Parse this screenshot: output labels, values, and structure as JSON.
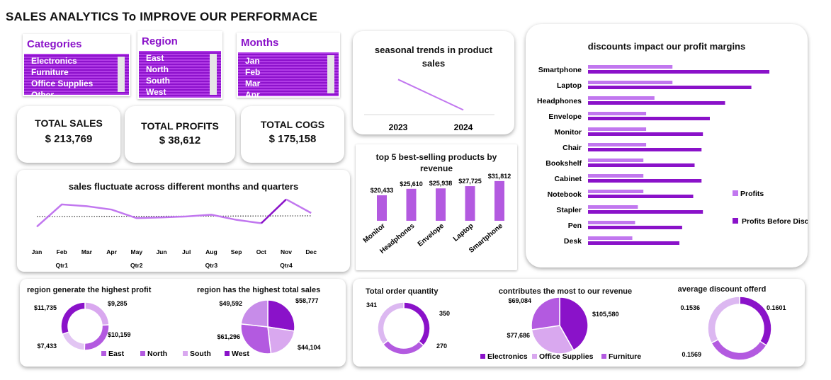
{
  "title": "SALES ANALYTICS To IMPROVE OUR  PERFORMACE",
  "slicers": {
    "categories": {
      "header": "Categories",
      "items": [
        "Electronics",
        "Furniture",
        "Office Supplies",
        "Other"
      ]
    },
    "region": {
      "header": "Region",
      "items": [
        "East",
        "North",
        "South",
        "West"
      ]
    },
    "months": {
      "header": "Months",
      "items": [
        "Jan",
        "Feb",
        "Mar",
        "Apr"
      ]
    }
  },
  "kpis": {
    "sales": {
      "label": "TOTAL  SALES",
      "value": "$  213,769"
    },
    "profits": {
      "label": "TOTAL PROFITS",
      "value": "$  38,612"
    },
    "cogs": {
      "label": "TOTAL COGS",
      "value": "$  175,158"
    }
  },
  "colors": {
    "primary": "#8a12c9",
    "medium": "#b35ae0",
    "light": "#d3a6ee",
    "pale": "#e6c8f5",
    "line": "#c177ef"
  },
  "chart_data": [
    {
      "id": "seasonal",
      "type": "line",
      "title": "seasonal trends in product sales",
      "categories": [
        "2023",
        "2024"
      ],
      "values": [
        120000,
        94000
      ]
    },
    {
      "id": "top5",
      "type": "bar",
      "title": "top 5  best-selling products by revenue",
      "categories": [
        "Monitor",
        "Headphones",
        "Envelope",
        "Laptop",
        "Smartphone"
      ],
      "values": [
        20433,
        25610,
        25938,
        27725,
        31812
      ],
      "labels": [
        "$20,433",
        "$25,610",
        "$25,938",
        "$27,725",
        "$31,812"
      ]
    },
    {
      "id": "discounts",
      "type": "bar",
      "title": "discounts  impact our profit margins",
      "categories": [
        "Smartphone",
        "Laptop",
        "Headphones",
        "Envelope",
        "Monitor",
        "Chair",
        "Bookshelf",
        "Cabinet",
        "Notebook",
        "Stapler",
        "Pen",
        "Desk"
      ],
      "series": [
        {
          "name": "Profits",
          "values": [
            6100,
            6100,
            4800,
            4200,
            4200,
            4200,
            4000,
            4000,
            4000,
            3600,
            3400,
            3200
          ]
        },
        {
          "name": "Profits Before Discount",
          "values": [
            13100,
            11800,
            9900,
            8800,
            8300,
            8200,
            7700,
            8200,
            7600,
            8300,
            6800,
            6600
          ]
        }
      ],
      "legend": "right"
    },
    {
      "id": "monthly",
      "type": "line",
      "title": "sales fluctuate across different months and quarters",
      "categories": [
        "Jan",
        "Feb",
        "Mar",
        "Apr",
        "May",
        "Jun",
        "Jul",
        "Aug",
        "Sep",
        "Oct",
        "Nov",
        "Dec"
      ],
      "quarters": [
        "Qtr1",
        "Qtr2",
        "Qtr3",
        "Qtr4"
      ],
      "values": [
        14000,
        20500,
        20000,
        19000,
        16500,
        16700,
        17000,
        17500,
        16000,
        15000,
        22000,
        18000
      ]
    },
    {
      "id": "region_profit",
      "type": "pie",
      "title": "region generate the highest profit",
      "categories": [
        "East",
        "North",
        "South",
        "West"
      ],
      "values": [
        9285,
        10159,
        7433,
        11735
      ],
      "labels": [
        "$9,285",
        "$10,159",
        "$7,433",
        "$11,735"
      ]
    },
    {
      "id": "region_sales",
      "type": "pie",
      "title": "region has the highest total sales",
      "categories": [
        "West",
        "South",
        "North",
        "East"
      ],
      "values": [
        58777,
        44104,
        61296,
        49592
      ],
      "labels": [
        "$58,777",
        "$44,104",
        "$61,296",
        "$49,592"
      ],
      "legend_labels": [
        "East",
        "North",
        "South",
        "West"
      ]
    },
    {
      "id": "order_qty",
      "type": "pie",
      "title": "Total order quantity",
      "values": [
        350,
        270,
        341
      ],
      "labels": [
        "350",
        "270",
        "341"
      ]
    },
    {
      "id": "category_revenue",
      "type": "pie",
      "title": "contributes the most to our revenue",
      "categories": [
        "Electronics",
        "Office Supplies",
        "Furniture"
      ],
      "values": [
        105580,
        77686,
        69084
      ],
      "labels": [
        "$105,580",
        "$77,686",
        "$69,084"
      ]
    },
    {
      "id": "avg_discount",
      "type": "pie",
      "title": "average discount offerd",
      "values": [
        0.1601,
        0.1569,
        0.1536
      ],
      "labels": [
        "0.1601",
        "0.1569",
        "0.1536"
      ]
    }
  ]
}
